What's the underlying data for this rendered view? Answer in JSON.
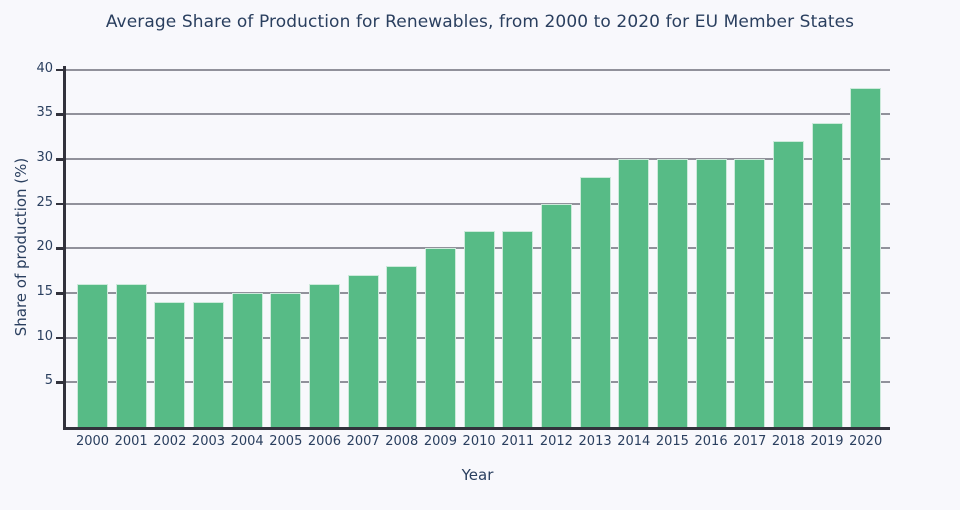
{
  "chart_data": {
    "type": "bar",
    "title": "Average Share of Production for Renewables, from 2000 to 2020 for EU Member States",
    "xlabel": "Year",
    "ylabel": "Share of production (%)",
    "categories": [
      "2000",
      "2001",
      "2002",
      "2003",
      "2004",
      "2005",
      "2006",
      "2007",
      "2008",
      "2009",
      "2010",
      "2011",
      "2012",
      "2013",
      "2014",
      "2015",
      "2016",
      "2017",
      "2018",
      "2019",
      "2020"
    ],
    "values": [
      16,
      16,
      14,
      14,
      15,
      15,
      16,
      17,
      18,
      20,
      22,
      22,
      25,
      28,
      30,
      30,
      30,
      30,
      32,
      34,
      38
    ],
    "yticks": [
      5,
      10,
      15,
      20,
      25,
      30,
      35,
      40
    ],
    "ylim": [
      0,
      40
    ],
    "grid": true,
    "legend_position": "none",
    "bar_color": "#57bb86",
    "bar_edge_color": "#cdeadb",
    "grid_color": "#91919b",
    "axis_color": "#32323c",
    "text_color": "#2a3f5f",
    "background_color": "#f8f8fc"
  }
}
